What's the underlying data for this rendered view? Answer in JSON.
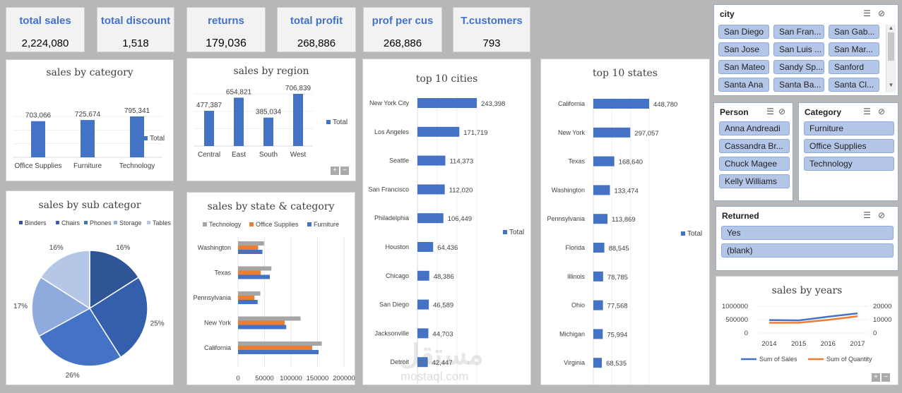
{
  "kpis": [
    {
      "title": "total sales",
      "value": "2,224,080"
    },
    {
      "title": "total discount",
      "value": "1,518"
    },
    {
      "title": "returns",
      "value": "179,036"
    },
    {
      "title": "total profit",
      "value": "268,886"
    },
    {
      "title": "prof per cus",
      "value": "268,886"
    },
    {
      "title": "T.customers",
      "value": "793"
    }
  ],
  "charts": {
    "category": {
      "title": "sales by category",
      "legend": "Total"
    },
    "region": {
      "title": "sales by region",
      "legend": "Total"
    },
    "cities": {
      "title": "top 10 cities",
      "legend": "Total"
    },
    "states": {
      "title": "top 10 states",
      "legend": "Total"
    },
    "subcat": {
      "title": "sales by sub categor"
    },
    "statecat": {
      "title": "sales by state & category"
    },
    "years": {
      "title": "sales by years"
    }
  },
  "chart_data": [
    {
      "type": "bar",
      "title": "sales by category",
      "categories": [
        "Office Supplies",
        "Furniture",
        "Technology"
      ],
      "values": [
        703066,
        725674,
        795341
      ],
      "labels": [
        "703,066",
        "725,674",
        "795,341"
      ],
      "legend": [
        "Total"
      ]
    },
    {
      "type": "bar",
      "title": "sales by region",
      "categories": [
        "Central",
        "East",
        "South",
        "West"
      ],
      "values": [
        477387,
        654821,
        385034,
        706839
      ],
      "labels": [
        "477,387",
        "654,821",
        "385,034",
        "706,839"
      ],
      "legend": [
        "Total"
      ]
    },
    {
      "type": "bar",
      "orientation": "horizontal",
      "title": "top 10 cities",
      "categories": [
        "New York City",
        "Los Angeles",
        "Seattle",
        "San Francisco",
        "Philadelphia",
        "Houston",
        "Chicago",
        "San Diego",
        "Jacksonville",
        "Detroit"
      ],
      "values": [
        243398,
        171719,
        114373,
        112020,
        106449,
        64436,
        48386,
        46589,
        44703,
        42447
      ],
      "labels": [
        "243,398",
        "171,719",
        "114,373",
        "112,020",
        "106,449",
        "64,436",
        "48,386",
        "46,589",
        "44,703",
        "42,447"
      ],
      "legend": [
        "Total"
      ]
    },
    {
      "type": "bar",
      "orientation": "horizontal",
      "title": "top 10 states",
      "categories": [
        "California",
        "New York",
        "Texas",
        "Washington",
        "Pennsylvania",
        "Florida",
        "Illinois",
        "Ohio",
        "Michigan",
        "Virginia"
      ],
      "values": [
        448780,
        297057,
        168640,
        133474,
        113869,
        88545,
        78785,
        77568,
        75994,
        68535
      ],
      "labels": [
        "448,780",
        "297,057",
        "168,640",
        "133,474",
        "113,869",
        "88,545",
        "78,785",
        "77,568",
        "75,994",
        "68,535"
      ],
      "legend": [
        "Total"
      ]
    },
    {
      "type": "pie",
      "title": "sales by sub categor",
      "categories": [
        "Binders",
        "Chairs",
        "Phones",
        "Storage",
        "Tables"
      ],
      "values": [
        16,
        25,
        26,
        17,
        16
      ],
      "labels": [
        "16%",
        "25%",
        "26%",
        "17%",
        "16%"
      ],
      "colors": [
        "#2f5597",
        "#335fac",
        "#4472c4",
        "#8faadc",
        "#b4c7e7"
      ]
    },
    {
      "type": "bar",
      "orientation": "horizontal",
      "title": "sales by state & category",
      "categories": [
        "Washington",
        "Texas",
        "Pennsylvania",
        "New York",
        "California"
      ],
      "series": [
        {
          "name": "Technology",
          "color": "#a5a5a5",
          "values": [
            49000,
            63000,
            42000,
            118000,
            158000
          ]
        },
        {
          "name": "Office Supplies",
          "color": "#ed7d31",
          "values": [
            38000,
            43000,
            31000,
            88000,
            140000
          ]
        },
        {
          "name": "Furniture",
          "color": "#4472c4",
          "values": [
            46000,
            60000,
            37000,
            91000,
            152000
          ]
        }
      ],
      "xlim": [
        0,
        200000
      ],
      "xticks": [
        "0",
        "50000",
        "100000",
        "150000",
        "200000"
      ]
    },
    {
      "type": "line",
      "title": "sales by years",
      "x": [
        "2014",
        "2015",
        "2016",
        "2017"
      ],
      "series": [
        {
          "name": "Sum of Sales",
          "color": "#4472c4",
          "axis": "left",
          "values": [
            484000,
            470000,
            609000,
            733000
          ]
        },
        {
          "name": "Sum of Quantity",
          "color": "#ed7d31",
          "axis": "right",
          "values": [
            7600,
            7700,
            9800,
            12500
          ]
        }
      ],
      "ylim_left": [
        0,
        1000000
      ],
      "ylim_right": [
        0,
        20000
      ],
      "yticks_left": [
        "1000000",
        "500000",
        "0"
      ],
      "yticks_right": [
        "20000",
        "10000",
        "0"
      ]
    }
  ],
  "slicers": {
    "city": {
      "title": "city",
      "items": [
        "San Diego",
        "San Fran...",
        "San Gab...",
        "San Jose",
        "San Luis ...",
        "San Mar...",
        "San Mateo",
        "Sandy Sp...",
        "Sanford",
        "Santa Ana",
        "Santa Ba...",
        "Santa Cl..."
      ]
    },
    "person": {
      "title": "Person",
      "items": [
        "Anna Andreadi",
        "Cassandra Br...",
        "Chuck Magee",
        "Kelly Williams"
      ]
    },
    "category": {
      "title": "Category",
      "items": [
        "Furniture",
        "Office Supplies",
        "Technology"
      ]
    },
    "returned": {
      "title": "Returned",
      "items": [
        "Yes",
        "(blank)"
      ]
    }
  },
  "watermark": {
    "text": "مستقل",
    "url": "mostaql.com"
  },
  "icons": {
    "multiselect": "multi-select-icon",
    "clear": "clear-filter-icon"
  }
}
